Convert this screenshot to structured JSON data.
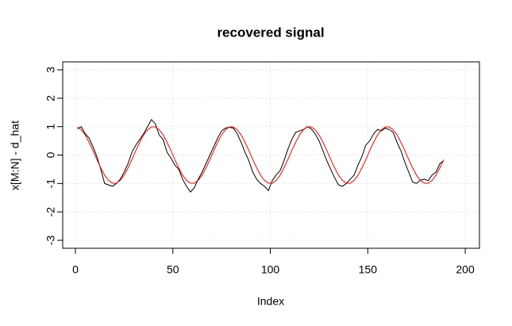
{
  "chart_data": {
    "type": "line",
    "title": "recovered signal",
    "x_label": "Index",
    "y_label": "x[M:N] - d_hat",
    "x": [
      1,
      3,
      5,
      7,
      9,
      11,
      13,
      15,
      17,
      19,
      21,
      23,
      25,
      27,
      29,
      31,
      33,
      35,
      37,
      39,
      41,
      43,
      45,
      47,
      49,
      51,
      53,
      55,
      57,
      59,
      61,
      63,
      65,
      67,
      69,
      71,
      73,
      75,
      77,
      79,
      81,
      83,
      85,
      87,
      89,
      91,
      93,
      95,
      97,
      99,
      101,
      103,
      105,
      107,
      109,
      111,
      113,
      115,
      117,
      119,
      121,
      123,
      125,
      127,
      129,
      131,
      133,
      135,
      137,
      139,
      141,
      143,
      145,
      147,
      149,
      151,
      153,
      155,
      157,
      159,
      161,
      163,
      165,
      167,
      169,
      171,
      173,
      175,
      177,
      179,
      181,
      183,
      185,
      187,
      189
    ],
    "series": [
      {
        "color": "#000000",
        "values": [
          0.92,
          1.0,
          0.75,
          0.6,
          0.3,
          -0.05,
          -0.5,
          -1.0,
          -1.05,
          -1.1,
          -1.0,
          -0.85,
          -0.6,
          -0.3,
          0.1,
          0.35,
          0.55,
          0.75,
          1.0,
          1.25,
          1.1,
          0.7,
          0.55,
          0.1,
          -0.1,
          -0.35,
          -0.5,
          -0.85,
          -1.1,
          -1.3,
          -1.15,
          -0.85,
          -0.6,
          -0.3,
          0.0,
          0.3,
          0.6,
          0.85,
          0.95,
          0.98,
          0.95,
          0.75,
          0.45,
          0.1,
          -0.2,
          -0.6,
          -0.85,
          -1.0,
          -1.1,
          -1.25,
          -0.9,
          -0.7,
          -0.55,
          -0.2,
          0.2,
          0.55,
          0.8,
          0.85,
          0.9,
          1.0,
          0.92,
          0.75,
          0.5,
          0.15,
          -0.2,
          -0.5,
          -0.8,
          -1.05,
          -1.1,
          -1.0,
          -0.85,
          -0.7,
          -0.35,
          -0.05,
          0.35,
          0.5,
          0.75,
          0.9,
          0.85,
          0.95,
          0.9,
          0.8,
          0.45,
          0.15,
          -0.25,
          -0.6,
          -0.95,
          -1.0,
          -0.88,
          -0.85,
          -0.9,
          -0.7,
          -0.6,
          -0.3,
          -0.2
        ]
      },
      {
        "color": "#ff0000",
        "values": [
          0.99,
          0.89,
          0.71,
          0.45,
          0.16,
          -0.16,
          -0.45,
          -0.71,
          -0.89,
          -0.99,
          -0.99,
          -0.89,
          -0.71,
          -0.45,
          -0.16,
          0.16,
          0.45,
          0.71,
          0.89,
          0.99,
          0.99,
          0.89,
          0.71,
          0.45,
          0.16,
          -0.16,
          -0.45,
          -0.71,
          -0.89,
          -0.99,
          -0.99,
          -0.89,
          -0.71,
          -0.45,
          -0.16,
          0.16,
          0.45,
          0.71,
          0.89,
          0.99,
          0.99,
          0.89,
          0.71,
          0.45,
          0.16,
          -0.16,
          -0.45,
          -0.71,
          -0.89,
          -0.99,
          -0.99,
          -0.89,
          -0.71,
          -0.45,
          -0.16,
          0.16,
          0.45,
          0.71,
          0.89,
          0.99,
          0.99,
          0.89,
          0.71,
          0.45,
          0.16,
          -0.16,
          -0.45,
          -0.71,
          -0.89,
          -0.99,
          -0.99,
          -0.89,
          -0.71,
          -0.45,
          -0.16,
          0.16,
          0.45,
          0.71,
          0.89,
          0.99,
          0.99,
          0.89,
          0.71,
          0.45,
          0.16,
          -0.16,
          -0.45,
          -0.71,
          -0.89,
          -0.99,
          -0.99,
          -0.89,
          -0.71,
          -0.45,
          -0.16
        ]
      }
    ],
    "xlim": [
      -6.52,
      207.3
    ],
    "xticks": [
      0,
      50,
      100,
      150,
      200
    ],
    "ylim": [
      -3.28,
      3.28
    ],
    "yticks": [
      -3,
      -2,
      -1,
      0,
      1,
      2,
      3
    ],
    "grid": true
  }
}
